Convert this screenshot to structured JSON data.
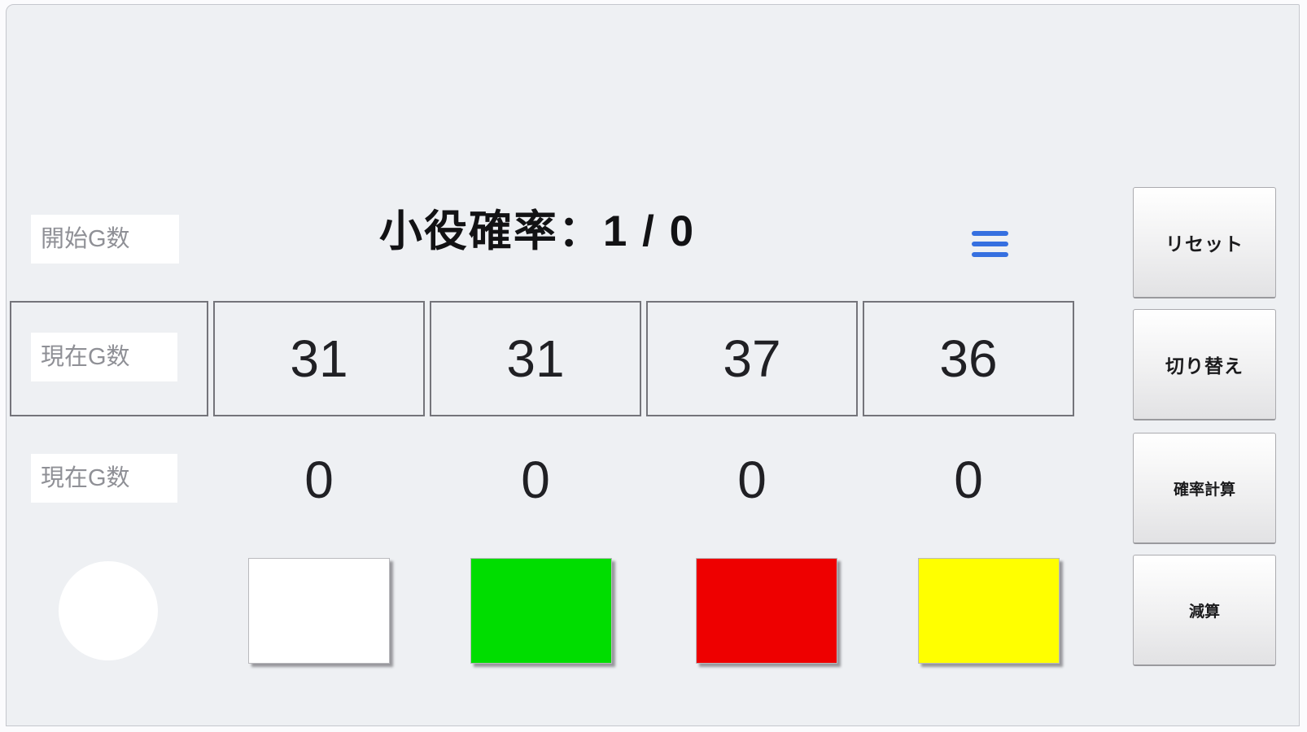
{
  "header": {
    "start_g_input": {
      "placeholder": "開始G数",
      "value": ""
    },
    "probability_title": "小役確率：1 / 0",
    "menu_icon": "hamburger-menu"
  },
  "side_buttons": [
    {
      "label": "リセット"
    },
    {
      "label": "切り替え"
    },
    {
      "label": "確率計算"
    },
    {
      "label": "減算"
    }
  ],
  "counters": {
    "current_g_input_top": {
      "placeholder": "現在G数",
      "value": ""
    },
    "current_g_input_bottom": {
      "placeholder": "現在G数",
      "value": ""
    },
    "denominators": [
      "31",
      "31",
      "37",
      "36"
    ],
    "counts": [
      "0",
      "0",
      "0",
      "0"
    ]
  },
  "color_row": {
    "indicator": {
      "name": "white-circle-indicator",
      "style": "background:#ffffff"
    },
    "swatches": [
      {
        "name": "white-swatch",
        "color": "#ffffff",
        "style": "background:#ffffff"
      },
      {
        "name": "green-swatch",
        "color": "#00dd00",
        "style": "background:#00dd00"
      },
      {
        "name": "red-swatch",
        "color": "#ee0000",
        "style": "background:#ee0000"
      },
      {
        "name": "yellow-swatch",
        "color": "#ffff00",
        "style": "background:#ffff00"
      }
    ]
  },
  "colors": {
    "menu_blue": "#3670e0",
    "background": "#eef0f3",
    "cell_border": "#74747a"
  },
  "menu_bar_style": "background:#3670e0"
}
